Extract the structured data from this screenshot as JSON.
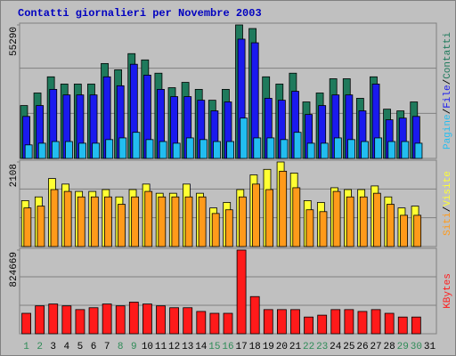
{
  "chart_data": {
    "type": "bar",
    "title": "Contatti giornalieri per Novembre 2003",
    "categories": [
      "1",
      "2",
      "3",
      "4",
      "5",
      "6",
      "7",
      "8",
      "9",
      "10",
      "11",
      "12",
      "13",
      "14",
      "15",
      "16",
      "17",
      "18",
      "19",
      "20",
      "21",
      "22",
      "23",
      "24",
      "25",
      "26",
      "27",
      "28",
      "29",
      "30",
      "31"
    ],
    "category_colors": [
      "#2e8b57",
      "#2e8b57",
      "#000000",
      "#000000",
      "#000000",
      "#000000",
      "#000000",
      "#2e8b57",
      "#2e8b57",
      "#000000",
      "#000000",
      "#000000",
      "#000000",
      "#000000",
      "#2e8b57",
      "#2e8b57",
      "#000000",
      "#000000",
      "#000000",
      "#000000",
      "#000000",
      "#2e8b57",
      "#2e8b57",
      "#000000",
      "#000000",
      "#000000",
      "#000000",
      "#000000",
      "#2e8b57",
      "#2e8b57",
      "#000000"
    ],
    "legend_separator": "/",
    "grid": true,
    "panels": [
      {
        "ylim": [
          0,
          55290
        ],
        "yticks": [
          55290
        ],
        "series": [
          {
            "name": "Contatti",
            "color": "#1f7a5c",
            "values": [
              21900,
              27100,
              33800,
              30800,
              30800,
              30800,
              39300,
              36700,
              43400,
              40800,
              35300,
              29300,
              31500,
              28600,
              24100,
              28600,
              55290,
              53800,
              33800,
              30800,
              35300,
              23400,
              27100,
              33000,
              33000,
              24900,
              33800,
              20400,
              19700,
              23400,
              0
            ]
          },
          {
            "name": "File",
            "color": "#1a1aee",
            "values": [
              17400,
              21900,
              28600,
              26300,
              26300,
              26300,
              33800,
              30100,
              39000,
              34500,
              28600,
              25600,
              25600,
              24100,
              19700,
              23400,
              49400,
              47900,
              24900,
              24100,
              27800,
              18200,
              21900,
              26300,
              26300,
              19700,
              30800,
              16000,
              16700,
              17400,
              0
            ]
          },
          {
            "name": "Pagine",
            "color": "#22bdf0",
            "values": [
              5600,
              6300,
              7000,
              7000,
              6300,
              6300,
              7800,
              8500,
              10800,
              7800,
              7000,
              6300,
              8500,
              7800,
              7000,
              7000,
              16700,
              8500,
              8500,
              7800,
              10800,
              6300,
              6300,
              8500,
              7800,
              7000,
              8500,
              7000,
              7000,
              6300,
              0
            ]
          }
        ]
      },
      {
        "ylim": [
          0,
          2108
        ],
        "yticks": [
          2108
        ],
        "series": [
          {
            "name": "Visite",
            "color": "#ffff33",
            "values": [
              1145,
              1237,
              1695,
              1557,
              1374,
              1374,
              1420,
              1237,
              1420,
              1557,
              1328,
              1328,
              1557,
              1328,
              962,
              1099,
              1420,
              1786,
              1924,
              2108,
              1832,
              1145,
              1099,
              1466,
              1420,
              1420,
              1511,
              1237,
              962,
              1008,
              0
            ]
          },
          {
            "name": "Siti",
            "color": "#ff9a1a",
            "values": [
              962,
              1008,
              1420,
              1374,
              1237,
              1237,
              1237,
              1053,
              1237,
              1374,
              1237,
              1237,
              1237,
              1237,
              824,
              916,
              1237,
              1557,
              1420,
              1878,
              1466,
              916,
              870,
              1374,
              1237,
              1237,
              1328,
              1053,
              779,
              779,
              0
            ]
          }
        ]
      },
      {
        "ylim": [
          0,
          824669
        ],
        "yticks": [
          824669
        ],
        "series": [
          {
            "name": "KBytes",
            "color": "#ff1a1a",
            "values": [
              201600,
              274900,
              293200,
              274900,
              238200,
              256600,
              293200,
              274900,
              311500,
              293200,
              274900,
              256600,
              256600,
              219900,
              201600,
              201600,
              824669,
              366500,
              238200,
              238200,
              238200,
              164900,
              183300,
              238200,
              238200,
              219900,
              238200,
              201600,
              164900,
              164900,
              0
            ]
          }
        ]
      }
    ]
  }
}
